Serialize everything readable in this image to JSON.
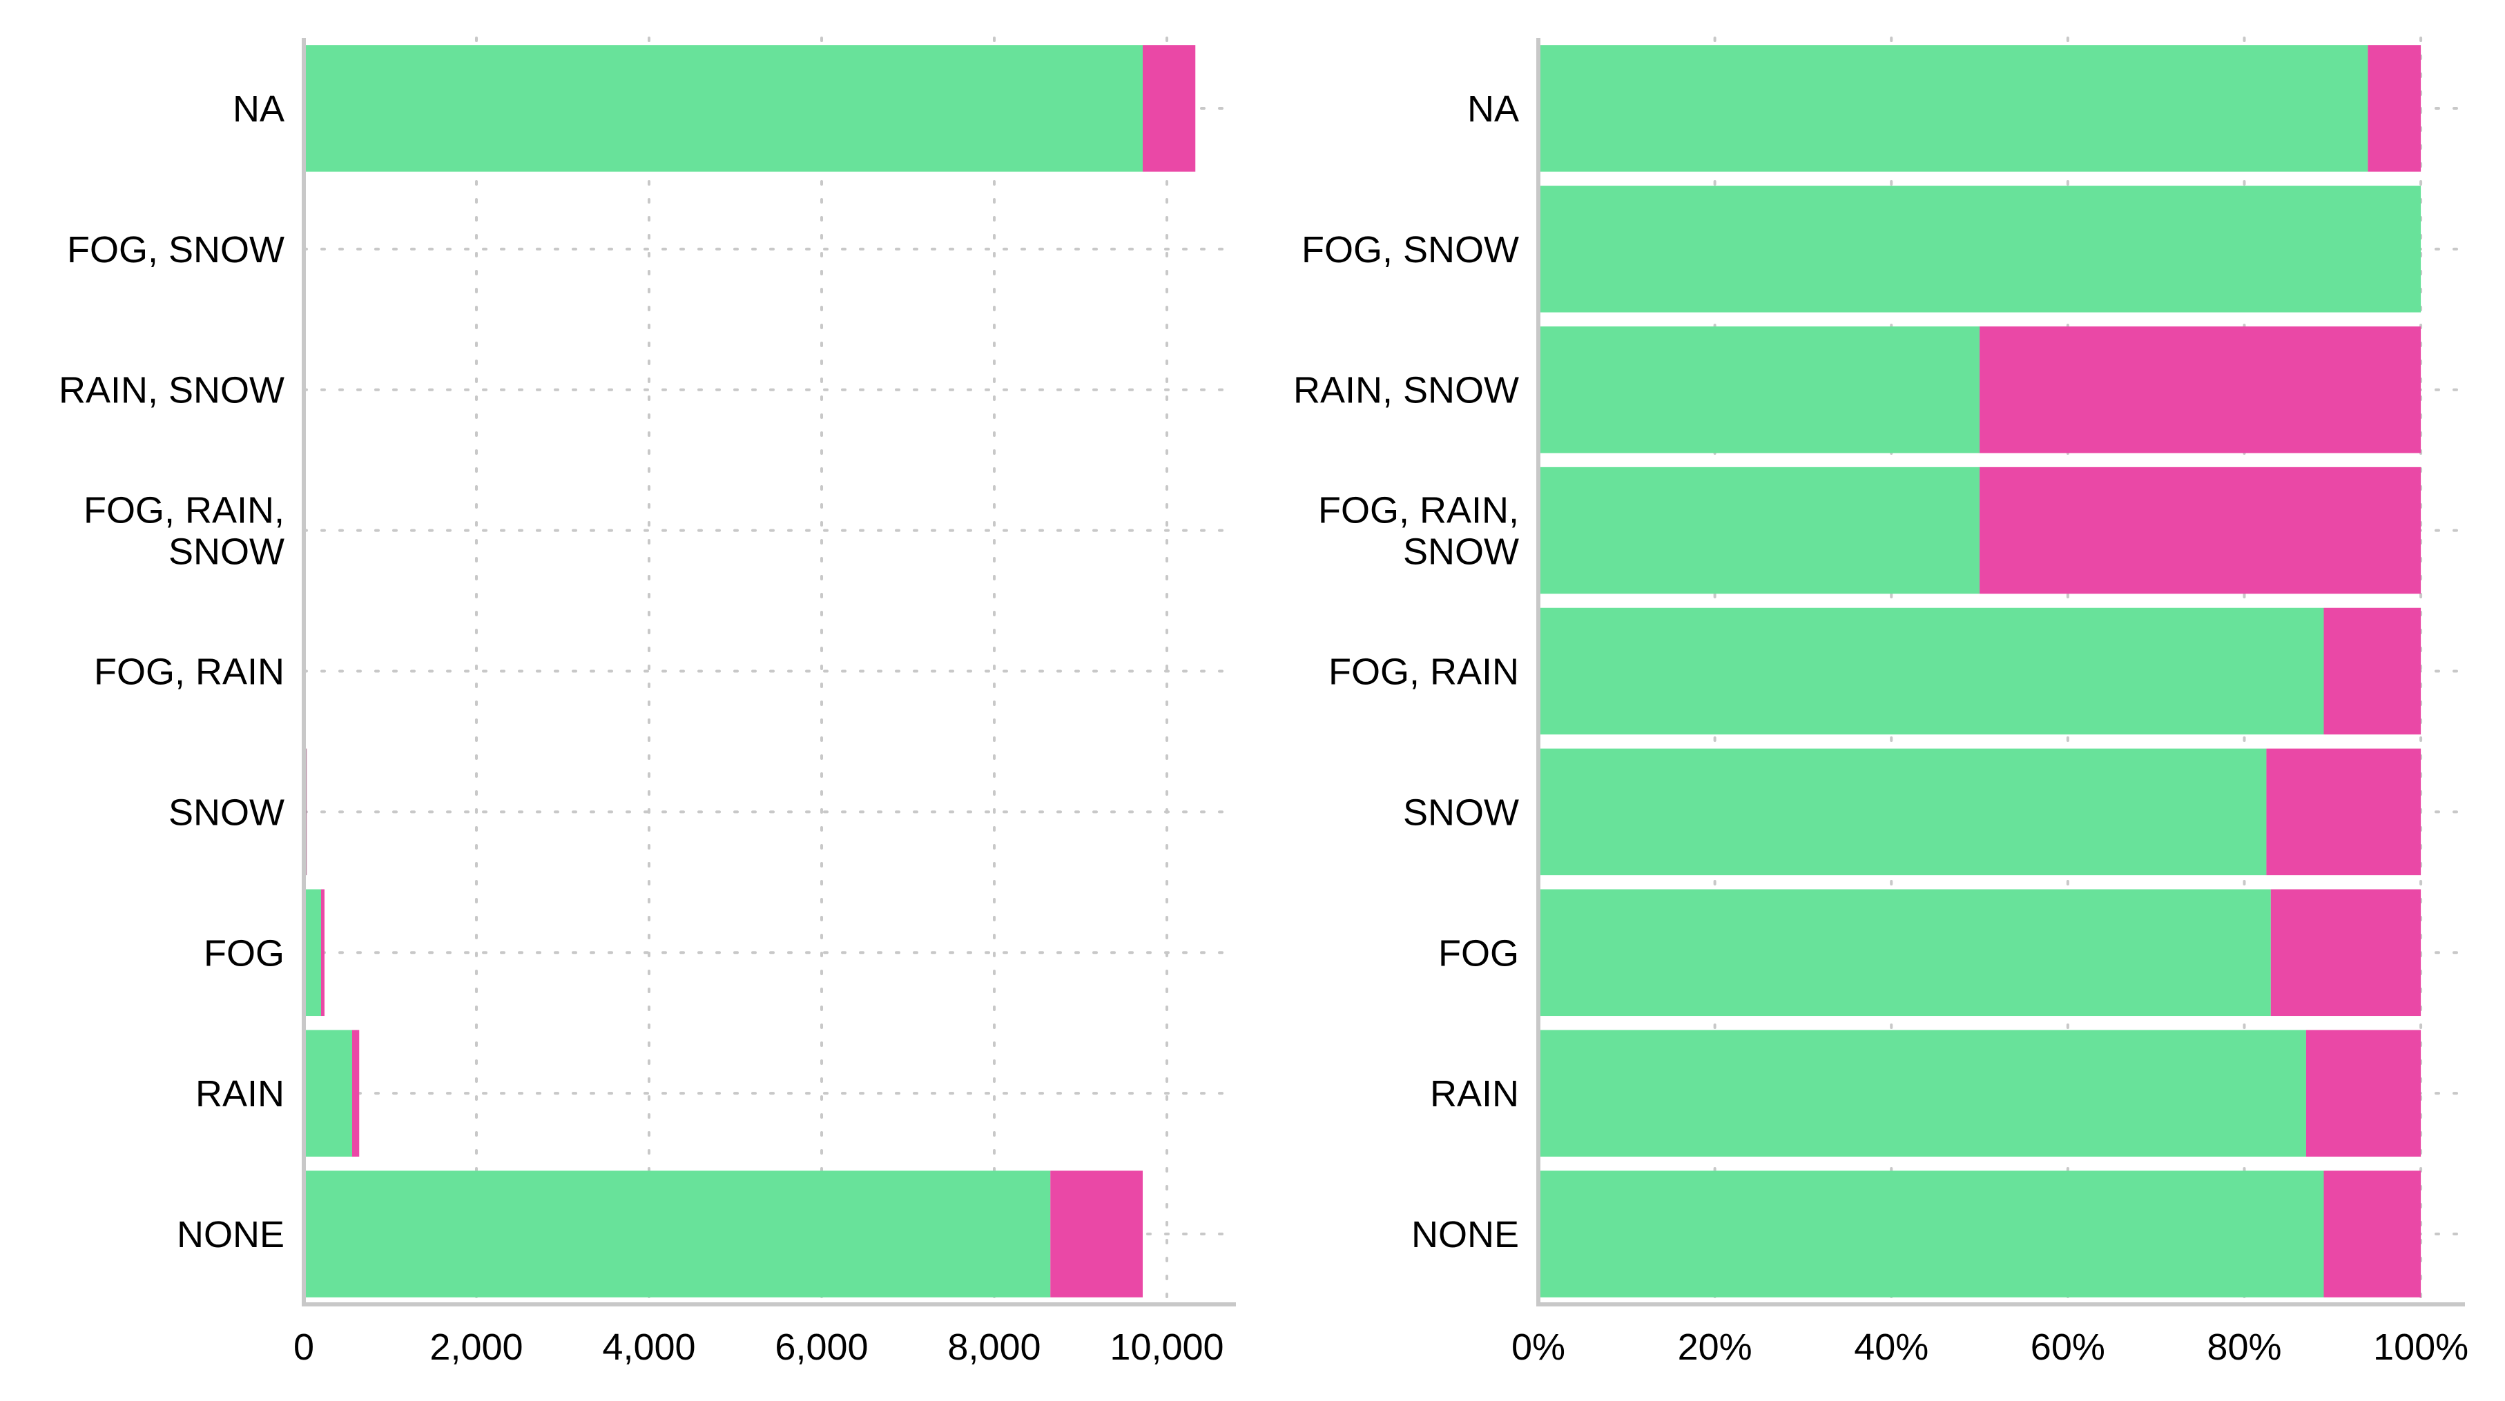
{
  "colors": {
    "series_a": "#68e29a",
    "series_b": "#ea48a6",
    "grid": "#c8c8c8",
    "axis": "#c8c8c8"
  },
  "chart_data": [
    {
      "type": "bar",
      "orientation": "horizontal",
      "stacked": true,
      "categories": [
        "NA",
        "FOG, SNOW",
        "RAIN, SNOW",
        "FOG, RAIN, SNOW",
        "FOG, RAIN",
        "SNOW",
        "FOG",
        "RAIN",
        "NONE"
      ],
      "category_lines": [
        [
          "NA"
        ],
        [
          "FOG, SNOW"
        ],
        [
          "RAIN, SNOW"
        ],
        [
          "FOG, RAIN,",
          "SNOW"
        ],
        [
          "FOG, RAIN"
        ],
        [
          "SNOW"
        ],
        [
          "FOG"
        ],
        [
          "RAIN"
        ],
        [
          "NONE"
        ]
      ],
      "series": [
        {
          "values": [
            9720,
            1,
            1,
            1,
            9,
            28,
            200,
            560,
            8650
          ]
        },
        {
          "values": [
            610,
            0,
            1,
            1,
            1,
            6,
            40,
            82,
            1070
          ]
        }
      ],
      "xlim": [
        0,
        10800
      ],
      "xticks": [
        0,
        2000,
        4000,
        6000,
        8000,
        10000
      ],
      "xtick_labels": [
        "0",
        "2,000",
        "4,000",
        "6,000",
        "8,000",
        "10,000"
      ],
      "grid": "dotted",
      "title": "",
      "xlabel": "",
      "ylabel": ""
    },
    {
      "type": "bar",
      "orientation": "horizontal",
      "stacked": true,
      "normalized": true,
      "categories": [
        "NA",
        "FOG, SNOW",
        "RAIN, SNOW",
        "FOG, RAIN, SNOW",
        "FOG, RAIN",
        "SNOW",
        "FOG",
        "RAIN",
        "NONE"
      ],
      "category_lines": [
        [
          "NA"
        ],
        [
          "FOG, SNOW"
        ],
        [
          "RAIN, SNOW"
        ],
        [
          "FOG, RAIN,",
          "SNOW"
        ],
        [
          "FOG, RAIN"
        ],
        [
          "SNOW"
        ],
        [
          "FOG"
        ],
        [
          "RAIN"
        ],
        [
          "NONE"
        ]
      ],
      "series": [
        {
          "values": [
            0.94,
            1.0,
            0.5,
            0.5,
            0.89,
            0.825,
            0.83,
            0.87,
            0.89
          ]
        },
        {
          "values": [
            0.06,
            0.0,
            0.5,
            0.5,
            0.11,
            0.175,
            0.17,
            0.13,
            0.11
          ]
        }
      ],
      "xlim": [
        0,
        1.05
      ],
      "xticks": [
        0,
        0.2,
        0.4,
        0.6,
        0.8,
        1.0
      ],
      "xtick_labels": [
        "0%",
        "20%",
        "40%",
        "60%",
        "80%",
        "100%"
      ],
      "grid": "dotted",
      "title": "",
      "xlabel": "",
      "ylabel": ""
    }
  ]
}
